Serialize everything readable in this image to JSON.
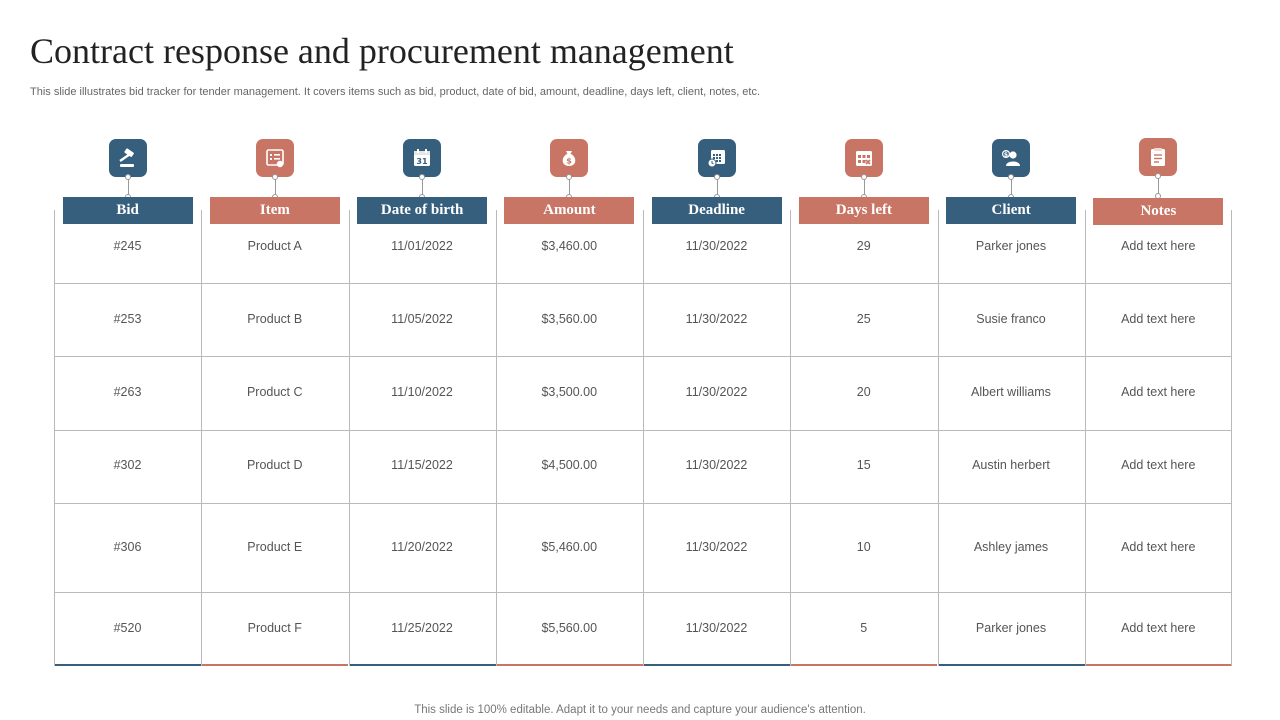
{
  "title": "Contract response and procurement management",
  "subtitle": "This slide illustrates bid tracker for tender management. It covers items such as bid, product, date of bid, amount, deadline, days left, client, notes, etc.",
  "footer": "This slide is 100% editable. Adapt it to your needs and capture your audience's attention.",
  "colors": {
    "blue": "#365f7e",
    "salmon": "#c97565"
  },
  "columns": [
    {
      "label": "Bid",
      "icon": "gavel-icon",
      "color": "blue"
    },
    {
      "label": "Item",
      "icon": "list-document-icon",
      "color": "salmon"
    },
    {
      "label": "Date of birth",
      "icon": "calendar-icon",
      "color": "blue"
    },
    {
      "label": "Amount",
      "icon": "money-bag-icon",
      "color": "salmon"
    },
    {
      "label": "Deadline",
      "icon": "calendar-clock-icon",
      "color": "blue"
    },
    {
      "label": "Days left",
      "icon": "calendar-grid-icon",
      "color": "salmon"
    },
    {
      "label": "Client",
      "icon": "client-money-icon",
      "color": "blue"
    },
    {
      "label": "Notes",
      "icon": "checklist-icon",
      "color": "salmon"
    }
  ],
  "rows": [
    [
      "#245",
      "Product A",
      "11/01/2022",
      "$3,460.00",
      "11/30/2022",
      "29",
      "Parker jones",
      "Add text here"
    ],
    [
      "#253",
      "Product B",
      "11/05/2022",
      "$3,560.00",
      "11/30/2022",
      "25",
      "Susie franco",
      "Add text here"
    ],
    [
      "#263",
      "Product C",
      "11/10/2022",
      "$3,500.00",
      "11/30/2022",
      "20",
      "Albert williams",
      "Add text here"
    ],
    [
      "#302",
      "Product D",
      "11/15/2022",
      "$4,500.00",
      "11/30/2022",
      "15",
      "Austin herbert",
      "Add text here"
    ],
    [
      "#306",
      "Product E",
      "11/20/2022",
      "$5,460.00",
      "11/30/2022",
      "10",
      "Ashley james",
      "Add text here"
    ],
    [
      "#520",
      "Product F",
      "11/25/2022",
      "$5,560.00",
      "11/30/2022",
      "5",
      "Parker jones",
      "Add text here"
    ]
  ]
}
